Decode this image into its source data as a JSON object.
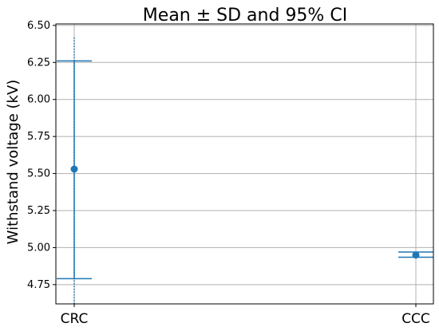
{
  "chart_data": {
    "type": "errorbar",
    "title": "Mean ± SD and 95% CI",
    "ylabel": "Withstand voltage (kV)",
    "xlabel": "",
    "categories": [
      "CRC",
      "CCC"
    ],
    "ylim": [
      4.62,
      6.51
    ],
    "yticks": [
      "4.75",
      "5.00",
      "5.25",
      "5.50",
      "5.75",
      "6.00",
      "6.25",
      "6.50"
    ],
    "grid": true,
    "series": [
      {
        "mean": [
          5.53,
          4.95
        ],
        "sd_low": [
          4.79,
          4.935
        ],
        "sd_high": [
          6.26,
          4.97
        ],
        "ci_low": [
          4.62,
          4.935
        ],
        "ci_high": [
          6.43,
          4.97
        ]
      }
    ],
    "colors": {
      "marker": "#1f77b4",
      "sd_bar": "#1f77b4",
      "ci_bar": "#1f77b4",
      "grid": "#b0b0b0",
      "axes": "#000000"
    }
  }
}
